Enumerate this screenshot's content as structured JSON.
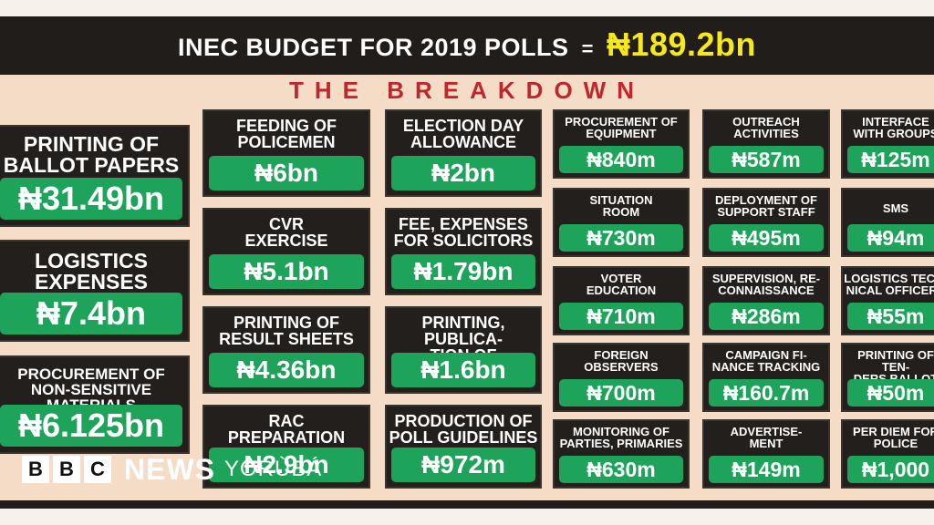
{
  "header": {
    "title": "INEC BUDGET FOR 2019 POLLS",
    "equals": "=",
    "total": "₦189.2bn"
  },
  "subtitle": "THE BREAKDOWN",
  "items": [
    {
      "label": "PRINTING OF\nBALLOT PAPERS",
      "value": "₦31.49bn"
    },
    {
      "label": "LOGISTICS\nEXPENSES",
      "value": "₦7.4bn"
    },
    {
      "label": "PROCUREMENT OF\nNON-SENSITIVE MATERIALS",
      "value": "₦6.125bn"
    },
    {
      "label": "FEEDING OF\nPOLICEMEN",
      "value": "₦6bn"
    },
    {
      "label": "CVR\nEXERCISE",
      "value": "₦5.1bn"
    },
    {
      "label": "PRINTING OF\nRESULT SHEETS",
      "value": "₦4.36bn"
    },
    {
      "label": "RAC\nPREPARATION",
      "value": "₦2.9bn"
    },
    {
      "label": "ELECTION DAY\nALLOWANCE",
      "value": "₦2bn"
    },
    {
      "label": "FEE, EXPENSES\nFOR SOLICITORS",
      "value": "₦1.79bn"
    },
    {
      "label": "PRINTING, PUBLICA-\nTION OF REGISTER",
      "value": "₦1.6bn"
    },
    {
      "label": "PRODUCTION OF\nPOLL GUIDELINES",
      "value": "₦972m"
    },
    {
      "label": "PROCUREMENT OF\nEQUIPMENT",
      "value": "₦840m"
    },
    {
      "label": "SITUATION\nROOM",
      "value": "₦730m"
    },
    {
      "label": "VOTER\nEDUCATION",
      "value": "₦710m"
    },
    {
      "label": "FOREIGN\nOBSERVERS",
      "value": "₦700m"
    },
    {
      "label": "MONITORING OF\nPARTIES, PRIMARIES",
      "value": "₦630m"
    },
    {
      "label": "OUTREACH\nACTIVITIES",
      "value": "₦587m"
    },
    {
      "label": "DEPLOYMENT OF\nSUPPORT STAFF",
      "value": "₦495m"
    },
    {
      "label": "SUPERVISION, RE-\nCONNAISSANCE",
      "value": "₦286m"
    },
    {
      "label": "CAMPAIGN FI-\nNANCE TRACKING",
      "value": "₦160.7m"
    },
    {
      "label": "ADVERTISE-\nMENT",
      "value": "₦149m"
    },
    {
      "label": "INTERFACE\nWITH GROUPS",
      "value": "₦125m"
    },
    {
      "label": "SMS",
      "value": "₦94m"
    },
    {
      "label": "LOGISTICS TECH-\nNICAL OFFICERS",
      "value": "₦55m"
    },
    {
      "label": "PRINTING OF TEN-\nDERS BALLOT PAPERS",
      "value": "₦50m"
    },
    {
      "label": "PER DIEM FOR\nPOLICE",
      "value": "₦1,000"
    }
  ],
  "logo": {
    "letters": [
      "B",
      "B",
      "C"
    ],
    "news": "NEWS",
    "language": "YORÙBÁ"
  },
  "colors": {
    "background": "#211d1a",
    "panel": "#f4dcc6",
    "value_bar": "#1ea35a",
    "total": "#f7e81d",
    "subtitle": "#c0262d"
  }
}
